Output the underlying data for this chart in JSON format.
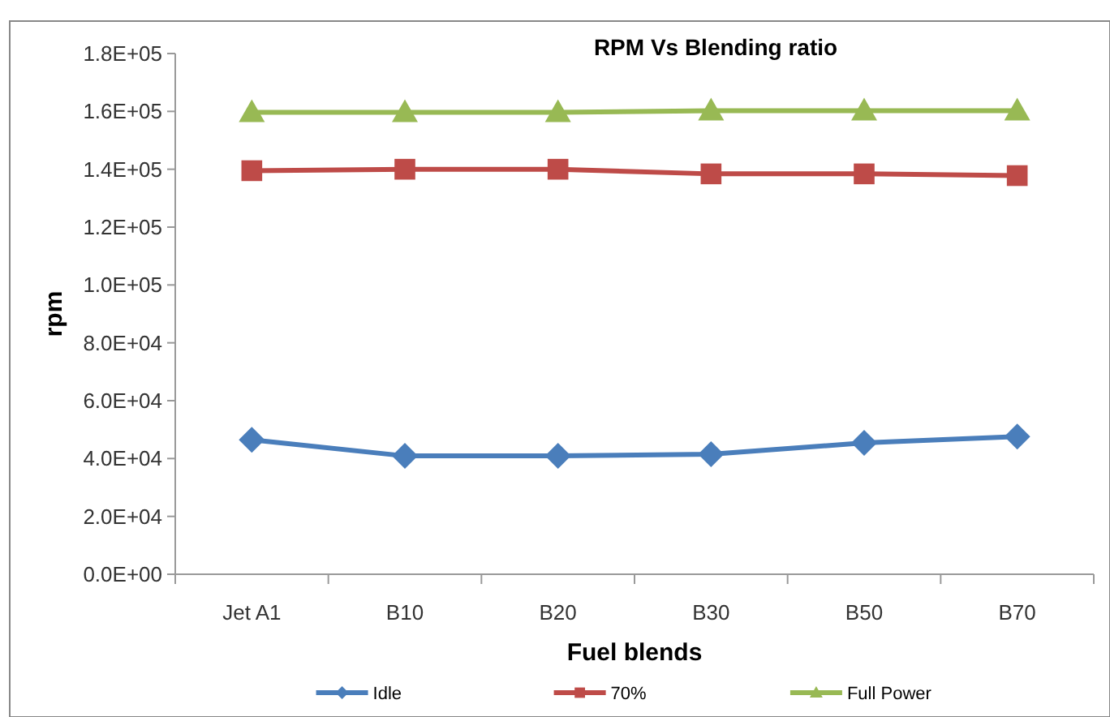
{
  "chart_data": {
    "type": "line",
    "title": "RPM Vs Blending ratio",
    "xlabel": "Fuel blends",
    "ylabel": "rpm",
    "categories": [
      "Jet A1",
      "B10",
      "B20",
      "B30",
      "B50",
      "B70"
    ],
    "series": [
      {
        "name": "Idle",
        "color": "#4a7ebb",
        "marker": "diamond",
        "values": [
          46500,
          40900,
          40900,
          41500,
          45400,
          47600
        ]
      },
      {
        "name": "70%",
        "color": "#be4b48",
        "marker": "square",
        "values": [
          139500,
          140000,
          140000,
          138400,
          138400,
          137800
        ]
      },
      {
        "name": "Full Power",
        "color": "#98b954",
        "marker": "triangle",
        "values": [
          159700,
          159700,
          159700,
          160200,
          160200,
          160200
        ]
      }
    ],
    "ylim": [
      0,
      180000
    ],
    "yticks": [
      {
        "value": 0,
        "label": "0.0E+00"
      },
      {
        "value": 20000,
        "label": "2.0E+04"
      },
      {
        "value": 40000,
        "label": "4.0E+04"
      },
      {
        "value": 60000,
        "label": "6.0E+04"
      },
      {
        "value": 80000,
        "label": "8.0E+04"
      },
      {
        "value": 100000,
        "label": "1.0E+05"
      },
      {
        "value": 120000,
        "label": "1.2E+05"
      },
      {
        "value": 140000,
        "label": "1.4E+05"
      },
      {
        "value": 160000,
        "label": "1.6E+05"
      },
      {
        "value": 180000,
        "label": "1.8E+05"
      }
    ],
    "grid": false,
    "legend": "bottom",
    "line_style": "solid"
  }
}
